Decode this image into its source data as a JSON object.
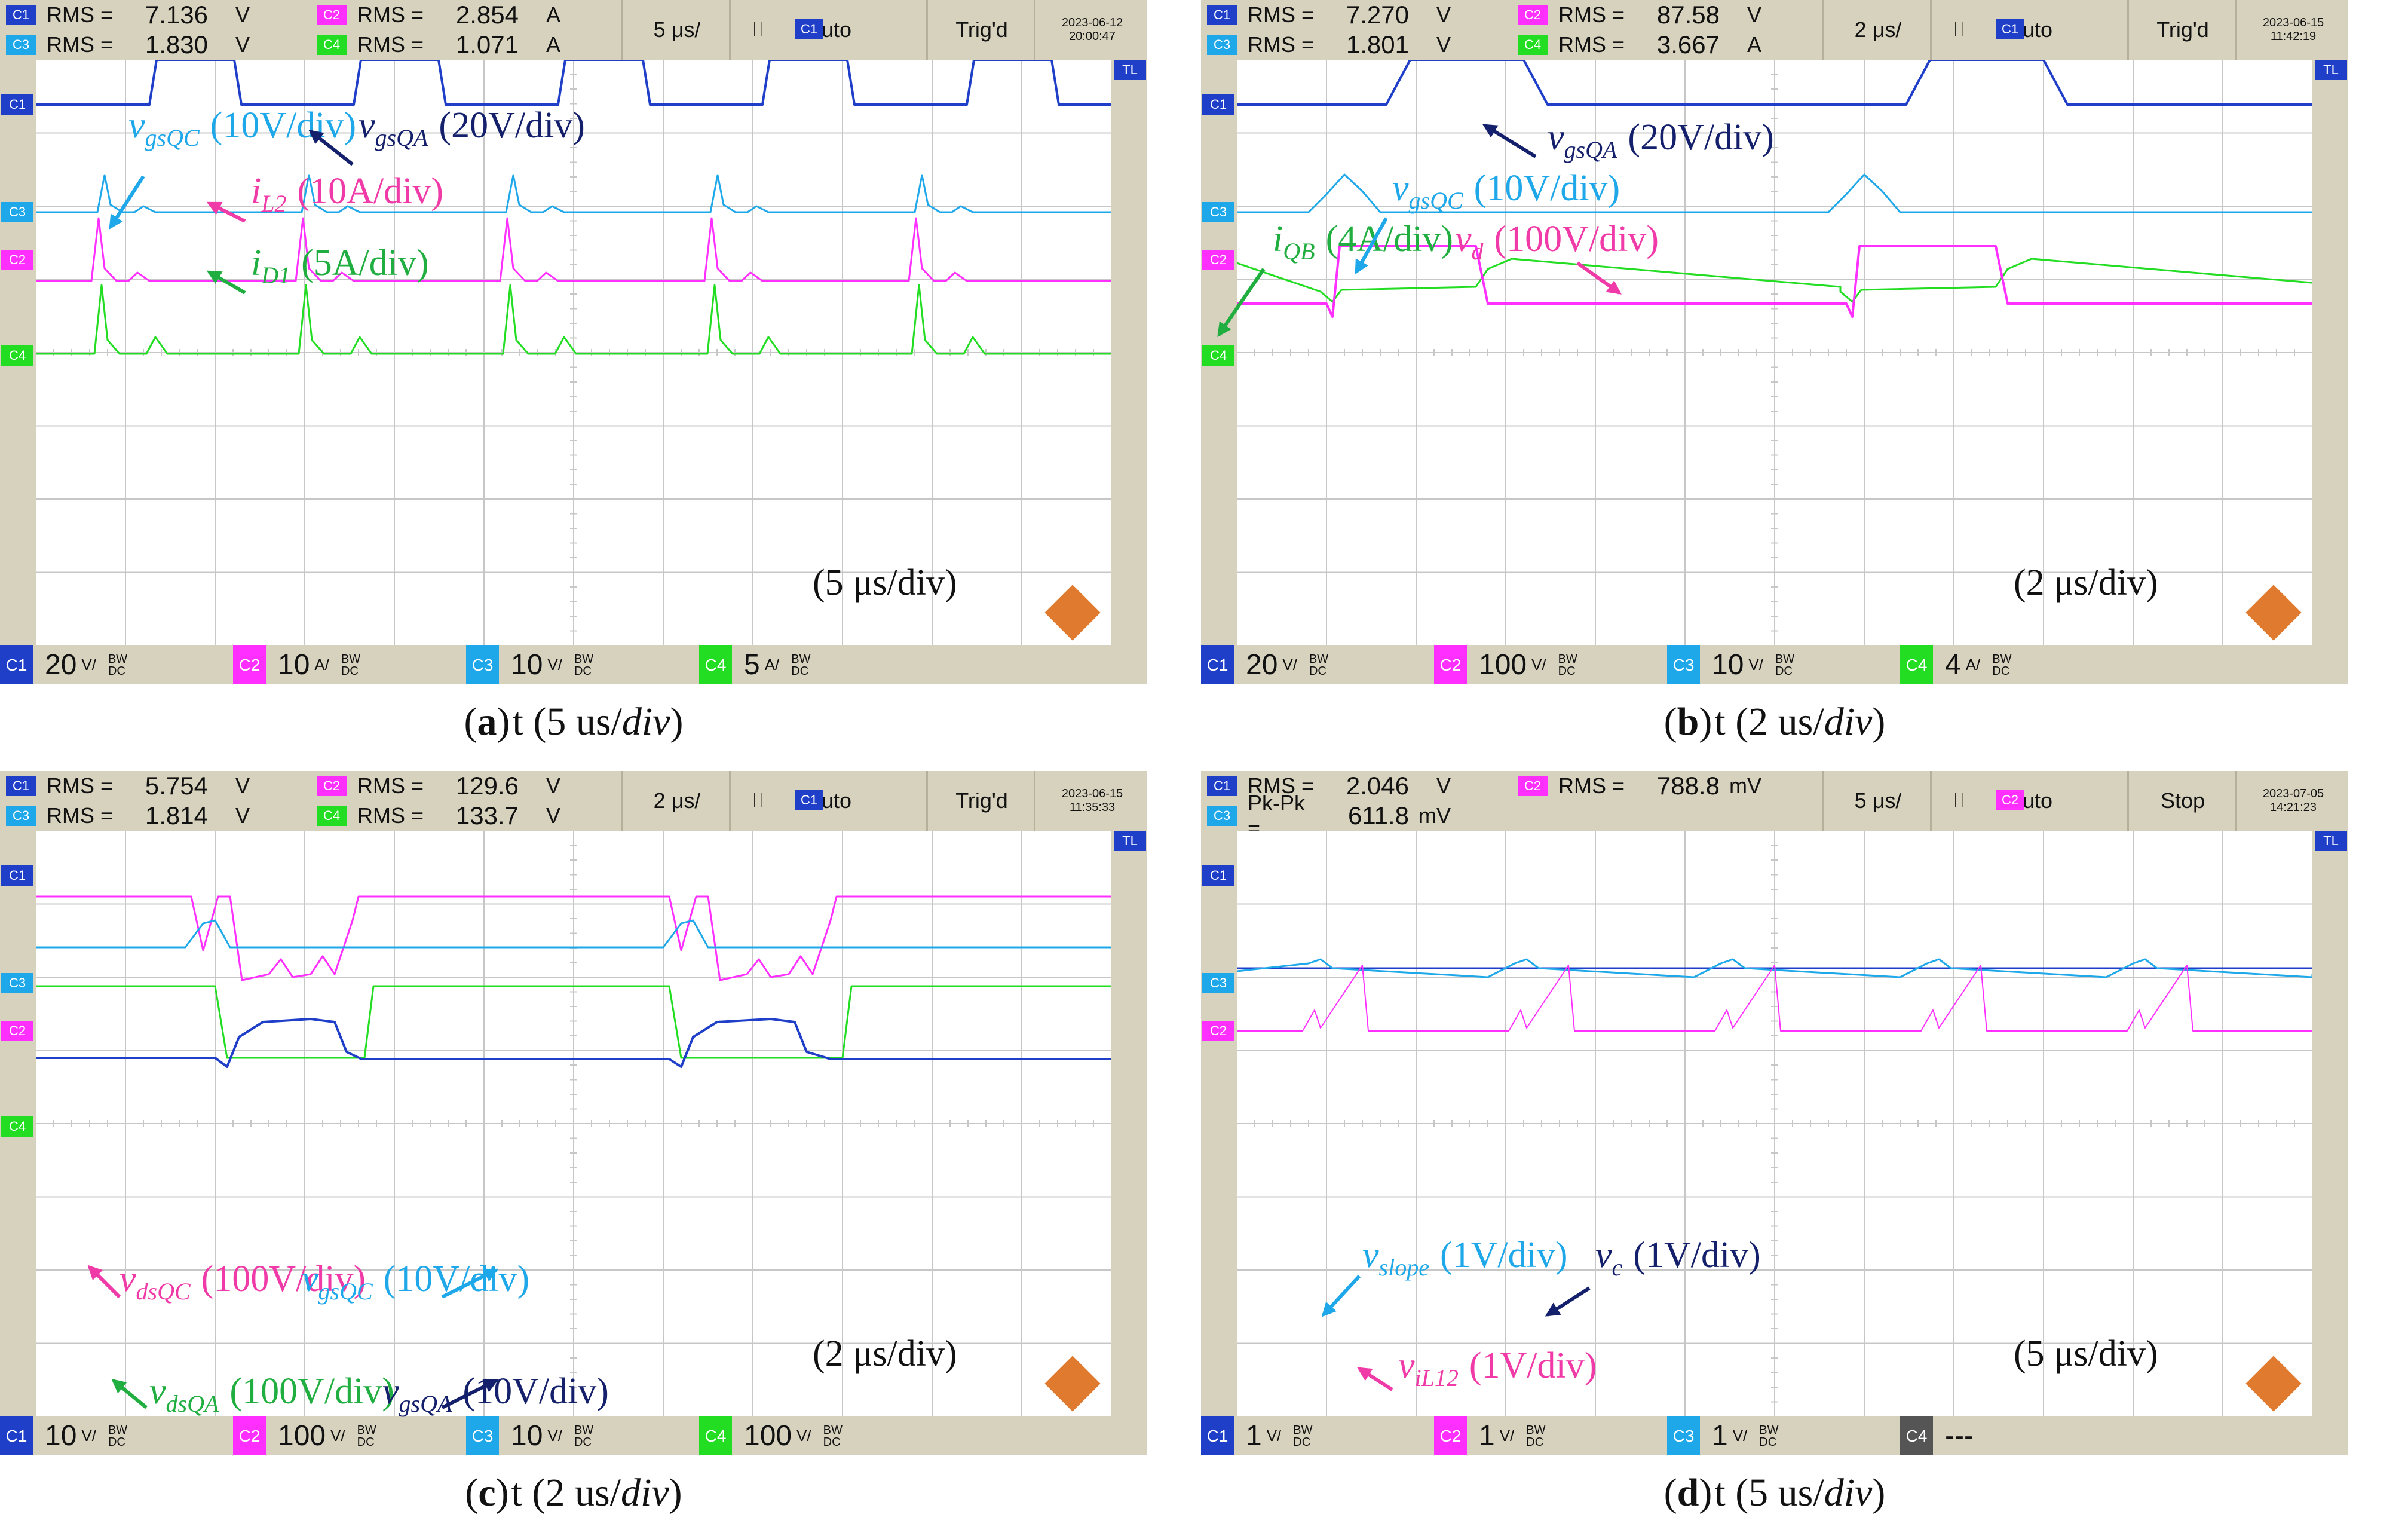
{
  "colors": {
    "c1": "#1f3fc8",
    "c2": "#ff30ff",
    "c3": "#1ea8ea",
    "c4": "#22dd22",
    "dark": "#14206b",
    "pink": "#ef3aa8",
    "green": "#1fae3f",
    "cyan": "#1ea8ea",
    "bg": "#d7d2bd"
  },
  "chart_data": [
    {
      "type": "line",
      "title": "(a) t (5 us/div)",
      "caption_letter": "a",
      "caption_rest": "t (5 us/",
      "time_per_div": "(5 μs/div)",
      "header": {
        "row0": [
          {
            "ch": "C1",
            "label": "RMS =",
            "value": "7.136",
            "unit": "V"
          },
          {
            "ch": "C2",
            "label": "RMS =",
            "value": "2.854",
            "unit": "A"
          }
        ],
        "row1": [
          {
            "ch": "C3",
            "label": "RMS =",
            "value": "1.830",
            "unit": "V"
          },
          {
            "ch": "C4",
            "label": "RMS =",
            "value": "1.071",
            "unit": "A"
          }
        ],
        "timebase": "5 μs/",
        "trig_ch": "C1",
        "mode": "Auto",
        "status": "Trig'd",
        "date": "2023-06-12",
        "time": "20:00:47"
      },
      "footer": [
        {
          "ch": "C1",
          "v": "20",
          "u": "V/"
        },
        {
          "ch": "C2",
          "v": "10",
          "u": "A/"
        },
        {
          "ch": "C3",
          "v": "10",
          "u": "V/"
        },
        {
          "ch": "C4",
          "v": "5",
          "u": "A/"
        }
      ],
      "series": [
        {
          "name": "vgsQA",
          "scale": "20V/div",
          "shape": "pulse",
          "period_div": 1.4,
          "duty": 0.5
        },
        {
          "name": "vgsQC",
          "scale": "10V/div",
          "shape": "spike",
          "period_div": 1.4
        },
        {
          "name": "iL2",
          "scale": "10A/div",
          "shape": "spike",
          "period_div": 1.4
        },
        {
          "name": "iD1",
          "scale": "5A/div",
          "shape": "spike",
          "period_div": 1.4
        }
      ],
      "annotations": [
        {
          "sym": "v",
          "sub": "gsQC",
          "scale": "(10V/div)"
        },
        {
          "sym": "v",
          "sub": "gsQA",
          "scale": "(20V/div)"
        },
        {
          "sym": "i",
          "sub": "L2",
          "scale": "(10A/div)"
        },
        {
          "sym": "i",
          "sub": "D1",
          "scale": "(5A/div)"
        }
      ]
    },
    {
      "type": "line",
      "title": "(b) t (2 us/div)",
      "caption_letter": "b",
      "caption_rest": "t (2 us/",
      "time_per_div": "(2 μs/div)",
      "header": {
        "row0": [
          {
            "ch": "C1",
            "label": "RMS =",
            "value": "7.270",
            "unit": "V"
          },
          {
            "ch": "C2",
            "label": "RMS =",
            "value": "87.58",
            "unit": "V"
          }
        ],
        "row1": [
          {
            "ch": "C3",
            "label": "RMS =",
            "value": "1.801",
            "unit": "V"
          },
          {
            "ch": "C4",
            "label": "RMS =",
            "value": "3.667",
            "unit": "A"
          }
        ],
        "timebase": "2 μs/",
        "trig_ch": "C1",
        "mode": "Auto",
        "status": "Trig'd",
        "date": "2023-06-15",
        "time": "11:42:19"
      },
      "footer": [
        {
          "ch": "C1",
          "v": "20",
          "u": "V/"
        },
        {
          "ch": "C2",
          "v": "100",
          "u": "V/"
        },
        {
          "ch": "C3",
          "v": "10",
          "u": "V/"
        },
        {
          "ch": "C4",
          "v": "4",
          "u": "A/"
        }
      ],
      "series": [
        {
          "name": "vgsQA",
          "scale": "20V/div"
        },
        {
          "name": "vgsQC",
          "scale": "10V/div"
        },
        {
          "name": "iQB",
          "scale": "4A/div"
        },
        {
          "name": "vd",
          "scale": "100V/div"
        }
      ],
      "annotations": [
        {
          "sym": "v",
          "sub": "gsQA",
          "scale": "(20V/div)"
        },
        {
          "sym": "v",
          "sub": "gsQC",
          "scale": "(10V/div)"
        },
        {
          "sym": "i",
          "sub": "QB",
          "scale": "(4A/div)"
        },
        {
          "sym": "v",
          "sub": "d",
          "scale": "(100V/div)"
        }
      ]
    },
    {
      "type": "line",
      "title": "(c) t (2 us/div)",
      "caption_letter": "c",
      "caption_rest": "t (2 us/",
      "time_per_div": "(2 μs/div)",
      "header": {
        "row0": [
          {
            "ch": "C1",
            "label": "RMS =",
            "value": "5.754",
            "unit": "V"
          },
          {
            "ch": "C2",
            "label": "RMS =",
            "value": "129.6",
            "unit": "V"
          }
        ],
        "row1": [
          {
            "ch": "C3",
            "label": "RMS =",
            "value": "1.814",
            "unit": "V"
          },
          {
            "ch": "C4",
            "label": "RMS =",
            "value": "133.7",
            "unit": "V"
          }
        ],
        "timebase": "2 μs/",
        "trig_ch": "C1",
        "mode": "Auto",
        "status": "Trig'd",
        "date": "2023-06-15",
        "time": "11:35:33"
      },
      "footer": [
        {
          "ch": "C1",
          "v": "10",
          "u": "V/"
        },
        {
          "ch": "C2",
          "v": "100",
          "u": "V/"
        },
        {
          "ch": "C3",
          "v": "10",
          "u": "V/"
        },
        {
          "ch": "C4",
          "v": "100",
          "u": "V/"
        }
      ],
      "series": [
        {
          "name": "vdsQC",
          "scale": "100V/div"
        },
        {
          "name": "vgsQC",
          "scale": "10V/div"
        },
        {
          "name": "vdsQA",
          "scale": "100V/div"
        },
        {
          "name": "vgsQA",
          "scale": "10V/div"
        }
      ],
      "annotations": [
        {
          "sym": "v",
          "sub": "dsQC",
          "scale": "(100V/div)"
        },
        {
          "sym": "v",
          "sub": "gsQC",
          "scale": "(10V/div)"
        },
        {
          "sym": "v",
          "sub": "dsQA",
          "scale": "(100V/div)"
        },
        {
          "sym": "v",
          "sub": "gsQA",
          "scale": "(10V/div)"
        }
      ]
    },
    {
      "type": "line",
      "title": "(d) t (5 us/div)",
      "caption_letter": "d",
      "caption_rest": "t (5 us/",
      "time_per_div": "(5 μs/div)",
      "header": {
        "row0": [
          {
            "ch": "C1",
            "label": "RMS =",
            "value": "2.046",
            "unit": "V"
          },
          {
            "ch": "C2",
            "label": "RMS =",
            "value": "788.8",
            "unit": "mV"
          }
        ],
        "row1": [
          {
            "ch": "C3",
            "label": "Pk-Pk =",
            "value": "611.8",
            "unit": "mV"
          }
        ],
        "timebase": "5 μs/",
        "trig_ch": "C2",
        "mode": "Auto",
        "status": "Stop",
        "date": "2023-07-05",
        "time": "14:21:23"
      },
      "footer": [
        {
          "ch": "C1",
          "v": "1",
          "u": "V/"
        },
        {
          "ch": "C2",
          "v": "1",
          "u": "V/"
        },
        {
          "ch": "C3",
          "v": "1",
          "u": "V/"
        },
        {
          "ch": "C4",
          "v": "---",
          "u": ""
        }
      ],
      "series": [
        {
          "name": "vslope",
          "scale": "1V/div"
        },
        {
          "name": "vc",
          "scale": "1V/div"
        },
        {
          "name": "viL12",
          "scale": "1V/div"
        }
      ],
      "annotations": [
        {
          "sym": "v",
          "sub": "slope",
          "scale": "(1V/div)"
        },
        {
          "sym": "v",
          "sub": "c",
          "scale": "(1V/div)"
        },
        {
          "sym": "v",
          "sub": "iL12",
          "scale": "(1V/div)"
        }
      ]
    }
  ],
  "labels": {
    "bw": "BW",
    "dc": "DC",
    "tl": "TL",
    "div_word": "div"
  }
}
